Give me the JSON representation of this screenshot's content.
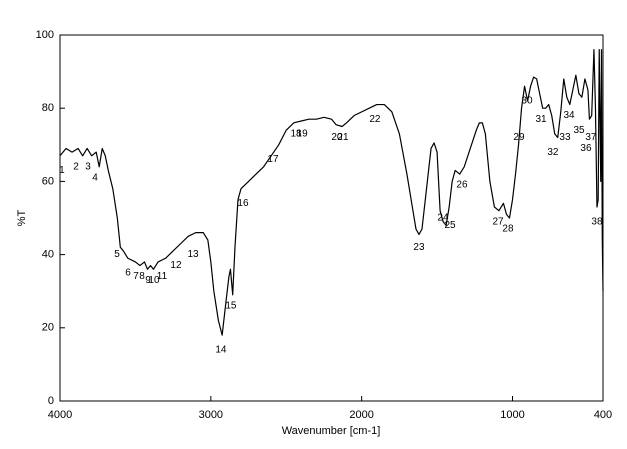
{
  "chart_data": {
    "type": "line",
    "xlabel": "Wavenumber [cm-1]",
    "ylabel": "%T",
    "xlim": [
      4000,
      400
    ],
    "ylim": [
      0,
      100
    ],
    "xticks": [
      4000,
      3000,
      2000,
      1000,
      400
    ],
    "yticks": [
      0,
      20,
      40,
      60,
      80,
      100
    ],
    "color": "#000000",
    "x": [
      4000,
      3960,
      3920,
      3880,
      3850,
      3820,
      3790,
      3760,
      3740,
      3720,
      3700,
      3680,
      3650,
      3620,
      3600,
      3580,
      3550,
      3500,
      3470,
      3440,
      3420,
      3400,
      3380,
      3350,
      3300,
      3250,
      3200,
      3150,
      3100,
      3050,
      3020,
      3000,
      2980,
      2950,
      2925,
      2900,
      2880,
      2870,
      2855,
      2840,
      2820,
      2800,
      2750,
      2700,
      2650,
      2600,
      2550,
      2500,
      2450,
      2400,
      2350,
      2300,
      2250,
      2200,
      2170,
      2130,
      2100,
      2050,
      2000,
      1950,
      1900,
      1850,
      1800,
      1750,
      1700,
      1660,
      1640,
      1620,
      1600,
      1570,
      1540,
      1520,
      1500,
      1480,
      1460,
      1440,
      1420,
      1400,
      1380,
      1350,
      1320,
      1280,
      1240,
      1220,
      1200,
      1180,
      1150,
      1120,
      1090,
      1060,
      1040,
      1020,
      1000,
      980,
      960,
      940,
      920,
      900,
      880,
      860,
      840,
      820,
      800,
      780,
      760,
      740,
      720,
      700,
      680,
      660,
      640,
      620,
      600,
      580,
      560,
      540,
      520,
      500,
      490,
      475,
      460,
      450,
      440,
      432,
      425,
      415,
      410,
      405,
      400
    ],
    "values": [
      67,
      69,
      68,
      69,
      67,
      69,
      67,
      68,
      64,
      69,
      67,
      63,
      58,
      50,
      42,
      41,
      39,
      38,
      37,
      38,
      36,
      37,
      36,
      38,
      39,
      41,
      43,
      45,
      46,
      46,
      44,
      38,
      30,
      22,
      18,
      27,
      34,
      36,
      29,
      42,
      55,
      58,
      60,
      62,
      64,
      67,
      70,
      74,
      76,
      76.5,
      77,
      77,
      77.5,
      77,
      75.5,
      75,
      76,
      78,
      79,
      80,
      81,
      81,
      79,
      73,
      62,
      52,
      47,
      45.5,
      47,
      58,
      69,
      70.5,
      68,
      52,
      49,
      48,
      53,
      60,
      63,
      62,
      64,
      69,
      74,
      76,
      76,
      73,
      60,
      53,
      52,
      54,
      51,
      50,
      55,
      62,
      70,
      80,
      86,
      82,
      86,
      88.5,
      88,
      84,
      80,
      80,
      81,
      78,
      73,
      72,
      79,
      88,
      83,
      81,
      85,
      89,
      84,
      83,
      88,
      85,
      77,
      78,
      96,
      80,
      53,
      55,
      96,
      60,
      96,
      45,
      30
    ],
    "annotations": [
      {
        "text": "1",
        "x": 3987,
        "y": 63
      },
      {
        "text": "2",
        "x": 3894,
        "y": 64
      },
      {
        "text": "3",
        "x": 3814,
        "y": 64
      },
      {
        "text": "4",
        "x": 3768,
        "y": 61
      },
      {
        "text": "5",
        "x": 3622,
        "y": 40
      },
      {
        "text": "6",
        "x": 3549,
        "y": 35
      },
      {
        "text": "7",
        "x": 3496,
        "y": 34
      },
      {
        "text": "8",
        "x": 3456,
        "y": 34
      },
      {
        "text": "9",
        "x": 3416,
        "y": 33
      },
      {
        "text": "10",
        "x": 3377,
        "y": 33
      },
      {
        "text": "11",
        "x": 3324,
        "y": 34
      },
      {
        "text": "12",
        "x": 3231,
        "y": 37
      },
      {
        "text": "13",
        "x": 3118,
        "y": 40
      },
      {
        "text": "14",
        "x": 2933,
        "y": 14
      },
      {
        "text": "15",
        "x": 2867,
        "y": 26
      },
      {
        "text": "16",
        "x": 2787,
        "y": 54
      },
      {
        "text": "17",
        "x": 2588,
        "y": 66
      },
      {
        "text": "18",
        "x": 2435,
        "y": 73
      },
      {
        "text": "19",
        "x": 2395,
        "y": 73
      },
      {
        "text": "20",
        "x": 2164,
        "y": 72
      },
      {
        "text": "21",
        "x": 2124,
        "y": 72
      },
      {
        "text": "22",
        "x": 1912,
        "y": 77
      },
      {
        "text": "23",
        "x": 1620,
        "y": 42
      },
      {
        "text": "24",
        "x": 1461,
        "y": 50
      },
      {
        "text": "25",
        "x": 1414,
        "y": 48
      },
      {
        "text": "26",
        "x": 1335,
        "y": 59
      },
      {
        "text": "27",
        "x": 1096,
        "y": 49
      },
      {
        "text": "28",
        "x": 1030,
        "y": 47
      },
      {
        "text": "29",
        "x": 957,
        "y": 72
      },
      {
        "text": "30",
        "x": 904,
        "y": 82
      },
      {
        "text": "31",
        "x": 811,
        "y": 77
      },
      {
        "text": "32",
        "x": 732,
        "y": 68
      },
      {
        "text": "33",
        "x": 652,
        "y": 72
      },
      {
        "text": "34",
        "x": 625,
        "y": 78
      },
      {
        "text": "35",
        "x": 559,
        "y": 74
      },
      {
        "text": "36",
        "x": 513,
        "y": 69
      },
      {
        "text": "37",
        "x": 480,
        "y": 72
      },
      {
        "text": "38",
        "x": 440,
        "y": 49
      }
    ]
  }
}
